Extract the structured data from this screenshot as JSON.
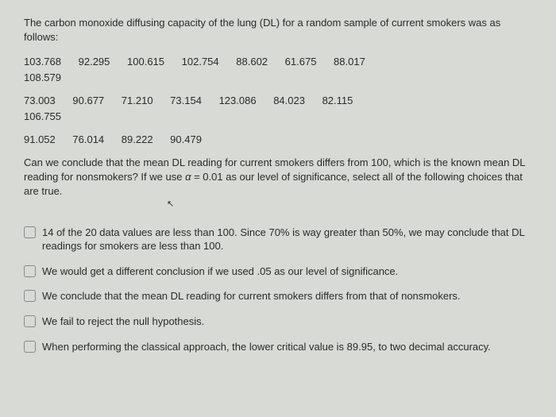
{
  "intro": "The carbon monoxide diffusing capacity of the lung (DL) for a random sample of current smokers was as follows:",
  "data": {
    "row1": [
      "103.768",
      "92.295",
      "100.615",
      "102.754",
      "88.602",
      "61.675",
      "88.017"
    ],
    "row1b": [
      "108.579"
    ],
    "row2": [
      "73.003",
      "90.677",
      "71.210",
      "73.154",
      "123.086",
      "84.023",
      "82.115"
    ],
    "row2b": [
      "106.755"
    ],
    "row3": [
      "91.052",
      "76.014",
      "89.222",
      "90.479"
    ]
  },
  "question_part1": "Can we conclude that the mean DL reading for current smokers differs from 100, which is the known mean DL reading for nonsmokers?  If we use ",
  "alpha_text": "α",
  "question_part2": " = 0.01 as our level of significance, select all of the following choices that are true.",
  "choices": [
    "14 of the 20 data values are less than 100.  Since 70% is way greater than 50%, we may conclude that DL readings for smokers are less than 100.",
    "We would get a different conclusion if we used .05 as our level of significance.",
    "We conclude that the mean DL reading for current smokers differs from that of nonsmokers.",
    "We fail to reject the null hypothesis.",
    "When performing the classical approach, the lower critical value is 89.95, to two decimal accuracy."
  ],
  "colors": {
    "background": "#d8dad5",
    "text": "#2a2a2a",
    "checkbox_border": "#888"
  }
}
